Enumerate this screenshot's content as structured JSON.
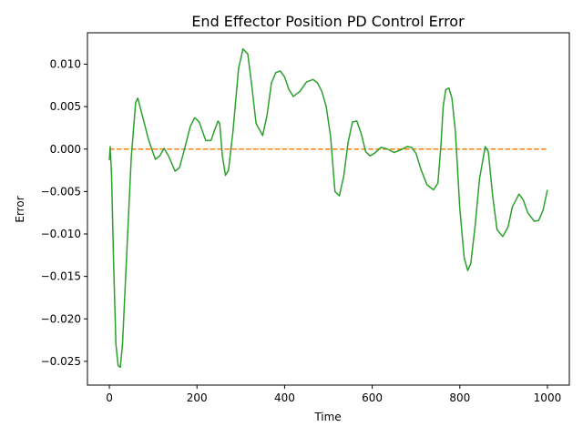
{
  "chart_data": {
    "type": "line",
    "title": "End Effector Position PD Control Error",
    "xlabel": "Time",
    "ylabel": "Error",
    "xlim": [
      -50,
      1050
    ],
    "ylim": [
      -0.0278,
      0.0137
    ],
    "grid": false,
    "x_ticks": [
      0,
      200,
      400,
      600,
      800,
      1000
    ],
    "x_tick_labels": [
      "0",
      "200",
      "400",
      "600",
      "800",
      "1000"
    ],
    "y_ticks": [
      0.01,
      0.005,
      0.0,
      -0.005,
      -0.01,
      -0.015,
      -0.02,
      -0.025
    ],
    "y_tick_labels": [
      "0.010",
      "0.005",
      "0.000",
      "−0.005",
      "−0.010",
      "−0.015",
      "−0.020",
      "−0.025"
    ],
    "series": [
      {
        "color": "#ff7f0e",
        "style": "dashed",
        "x": [
          0,
          1000
        ],
        "y": [
          0,
          0
        ]
      },
      {
        "color": "#2ca02c",
        "style": "solid",
        "x": [
          0,
          2,
          5,
          10,
          15,
          20,
          25,
          30,
          40,
          50,
          60,
          65,
          75,
          90,
          105,
          115,
          125,
          135,
          150,
          160,
          170,
          185,
          195,
          205,
          220,
          232,
          240,
          248,
          252,
          258,
          265,
          272,
          282,
          295,
          305,
          316,
          325,
          335,
          350,
          360,
          370,
          380,
          390,
          400,
          410,
          420,
          435,
          450,
          465,
          475,
          485,
          495,
          505,
          515,
          525,
          535,
          545,
          555,
          565,
          575,
          585,
          595,
          605,
          620,
          635,
          650,
          665,
          680,
          690,
          700,
          712,
          725,
          740,
          750,
          757,
          762,
          768,
          775,
          782,
          790,
          800,
          810,
          818,
          825,
          835,
          845,
          858,
          865,
          875,
          885,
          898,
          910,
          920,
          935,
          945,
          955,
          970,
          980,
          990,
          1000
        ],
        "y": [
          -0.0013,
          0.0003,
          -0.003,
          -0.014,
          -0.023,
          -0.0255,
          -0.0257,
          -0.023,
          -0.012,
          -0.001,
          0.0055,
          0.006,
          0.004,
          0.001,
          -0.0012,
          -0.0008,
          0.0001,
          -0.0008,
          -0.0026,
          -0.0022,
          -0.0003,
          0.0027,
          0.0037,
          0.0032,
          0.001,
          0.001,
          0.0022,
          0.0033,
          0.003,
          -0.0008,
          -0.0031,
          -0.0025,
          0.002,
          0.0095,
          0.0118,
          0.0112,
          0.0075,
          0.003,
          0.0016,
          0.004,
          0.0078,
          0.009,
          0.0092,
          0.0085,
          0.007,
          0.0062,
          0.0068,
          0.0079,
          0.0082,
          0.0078,
          0.0068,
          0.005,
          0.0015,
          -0.005,
          -0.0055,
          -0.0032,
          0.0008,
          0.0032,
          0.0033,
          0.0018,
          -0.0003,
          -0.0008,
          -0.0005,
          0.0002,
          0.0,
          -0.0004,
          -0.0001,
          0.0003,
          0.0002,
          -0.0005,
          -0.0025,
          -0.0042,
          -0.0048,
          -0.004,
          0.0005,
          0.005,
          0.007,
          0.0072,
          0.006,
          0.002,
          -0.007,
          -0.0128,
          -0.0143,
          -0.0135,
          -0.009,
          -0.0035,
          0.0003,
          -0.0003,
          -0.0055,
          -0.0095,
          -0.0103,
          -0.0092,
          -0.0068,
          -0.0053,
          -0.006,
          -0.0075,
          -0.0085,
          -0.0084,
          -0.0072,
          -0.0048
        ]
      }
    ]
  }
}
